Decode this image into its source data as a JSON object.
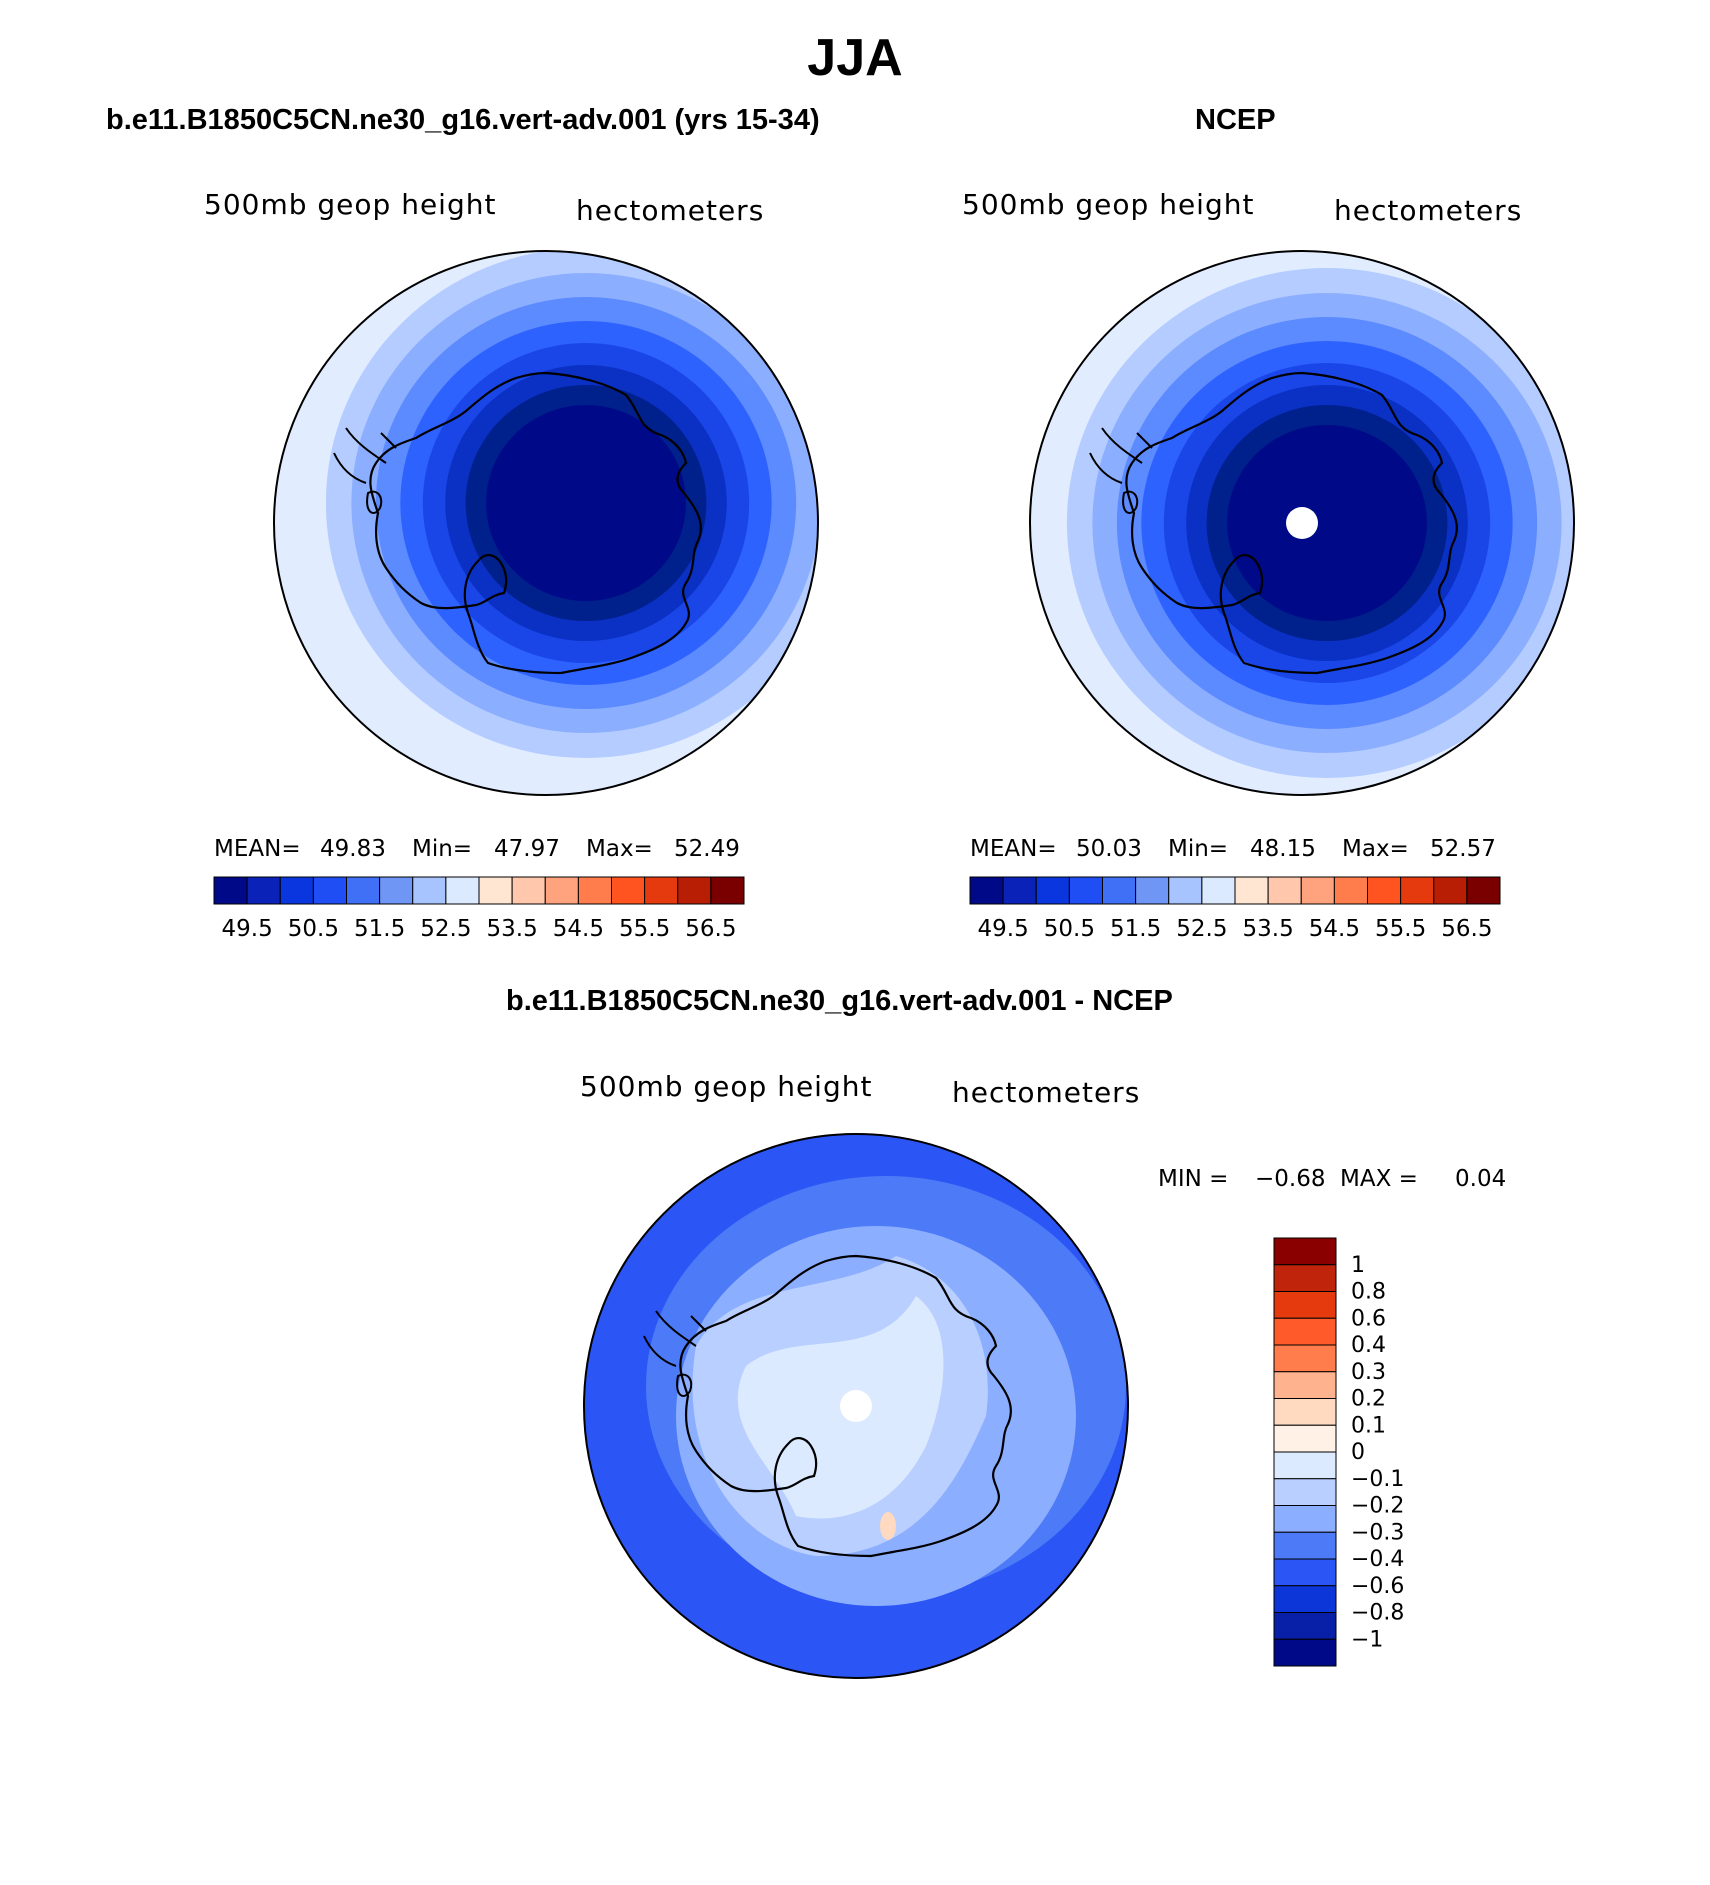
{
  "title": "JJA",
  "panels": [
    {
      "heading": "b.e11.B1850C5CN.ne30_g16.vert-adv.001 (yrs 15-34)",
      "variable": "500mb geop height",
      "units": "hectometers",
      "stats": {
        "mean_label": "MEAN=",
        "mean": "49.83",
        "min_label": "Min=",
        "min": "47.97",
        "max_label": "Max=",
        "max": "52.49"
      },
      "field_description_colors": [
        "#e1ecff",
        "#b4ccff",
        "#8caeff",
        "#5c8aff",
        "#2e62ff",
        "#1a46e8",
        "#0a30c4",
        "#00208c",
        "#000a88"
      ],
      "has_pole_hole": false
    },
    {
      "heading": "NCEP",
      "variable": "500mb geop height",
      "units": "hectometers",
      "stats": {
        "mean_label": "MEAN=",
        "mean": "50.03",
        "min_label": "Min=",
        "min": "48.15",
        "max_label": "Max=",
        "max": "52.57"
      },
      "field_description_colors": [
        "#e1ecff",
        "#b4ccff",
        "#8caeff",
        "#5c8aff",
        "#2e62ff",
        "#1a46e8",
        "#0a30c4",
        "#00208c",
        "#000a88"
      ],
      "has_pole_hole": true
    }
  ],
  "abs_colorbar": {
    "colors": [
      "#000a88",
      "#0a22b8",
      "#0a36e0",
      "#1f4ef5",
      "#4070f5",
      "#6f95f5",
      "#a8c4ff",
      "#dceaff",
      "#ffe6d2",
      "#ffc8ac",
      "#ffa37e",
      "#ff7c4c",
      "#ff5320",
      "#e53a0e",
      "#b81e04",
      "#7a0000"
    ],
    "tick_labels": [
      "49.5",
      "50.5",
      "51.5",
      "52.5",
      "53.5",
      "54.5",
      "55.5",
      "56.5"
    ]
  },
  "diff_panel": {
    "heading": "b.e11.B1850C5CN.ne30_g16.vert-adv.001 - NCEP",
    "variable": "500mb geop height",
    "units": "hectometers",
    "min_label": "MIN =",
    "min": "−0.68",
    "max_label": "MAX =",
    "max": "0.04",
    "colorbar": {
      "colors_top_to_bottom": [
        "#8a0000",
        "#c0240a",
        "#e53a0e",
        "#ff5a2a",
        "#ff7c4c",
        "#ffb28e",
        "#ffd9c0",
        "#fff1e6",
        "#dceaff",
        "#b8cfff",
        "#8caeff",
        "#4d7af7",
        "#2b56f5",
        "#0d36d8",
        "#0820a8",
        "#000a88"
      ],
      "tick_labels": [
        "1",
        "0.8",
        "0.6",
        "0.4",
        "0.3",
        "0.2",
        "0.1",
        "0",
        "−0.1",
        "−0.2",
        "−0.3",
        "−0.4",
        "−0.6",
        "−0.8",
        "−1"
      ]
    }
  }
}
